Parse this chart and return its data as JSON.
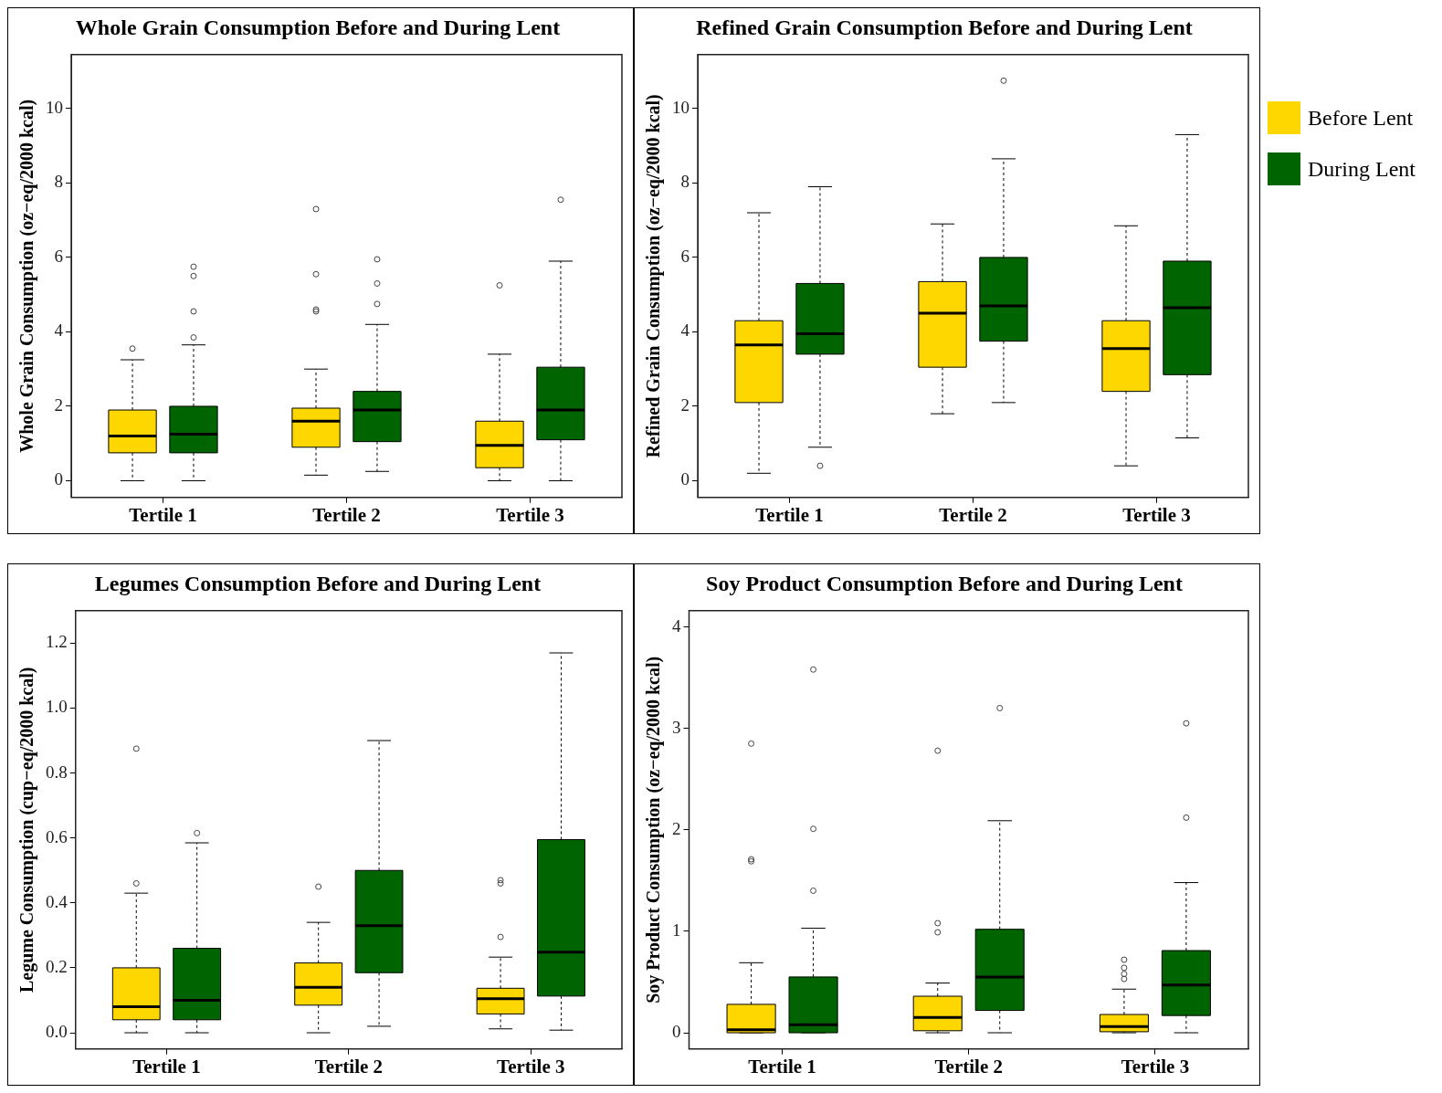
{
  "chart_data": [
    {
      "type": "box",
      "title": "Whole Grain Consumption Before and During Lent",
      "ylabel": "Whole Grain Consumption (oz−eq/2000 kcal)",
      "categories": [
        "Tertile 1",
        "Tertile 2",
        "Tertile 3"
      ],
      "ylim": [
        -0.45,
        11.45
      ],
      "yticks": [
        0,
        2,
        4,
        6,
        8,
        10
      ],
      "grid": false,
      "series": [
        {
          "color": "#ffd700",
          "boxes": [
            {
              "low": 0,
              "q1": 0.75,
              "median": 1.2,
              "q3": 1.9,
              "high": 3.25,
              "outliers": [
                3.55
              ]
            },
            {
              "low": 0.15,
              "q1": 0.9,
              "median": 1.6,
              "q3": 1.95,
              "high": 3.0,
              "outliers": [
                4.55,
                4.6,
                5.55,
                7.3
              ]
            },
            {
              "low": 0,
              "q1": 0.35,
              "median": 0.95,
              "q3": 1.6,
              "high": 3.4,
              "outliers": [
                5.25
              ]
            }
          ]
        },
        {
          "color": "#006400",
          "boxes": [
            {
              "low": 0,
              "q1": 0.75,
              "median": 1.25,
              "q3": 2.0,
              "high": 3.65,
              "outliers": [
                3.85,
                4.55,
                5.5,
                5.75
              ]
            },
            {
              "low": 0.25,
              "q1": 1.05,
              "median": 1.9,
              "q3": 2.4,
              "high": 4.2,
              "outliers": [
                4.75,
                5.3,
                5.95
              ]
            },
            {
              "low": 0,
              "q1": 1.1,
              "median": 1.9,
              "q3": 3.05,
              "high": 5.9,
              "outliers": [
                7.55
              ]
            }
          ]
        }
      ]
    },
    {
      "type": "box",
      "title": "Refined Grain Consumption Before and During Lent",
      "ylabel": "Refined Grain Consumption (oz−eq/2000 kcal)",
      "categories": [
        "Tertile 1",
        "Tertile 2",
        "Tertile 3"
      ],
      "ylim": [
        -0.45,
        11.45
      ],
      "yticks": [
        0,
        2,
        4,
        6,
        8,
        10
      ],
      "grid": false,
      "legend": "right",
      "series": [
        {
          "name": "Before Lent",
          "color": "#ffd700",
          "boxes": [
            {
              "low": 0.2,
              "q1": 2.1,
              "median": 3.65,
              "q3": 4.3,
              "high": 7.2
            },
            {
              "low": 1.8,
              "q1": 3.05,
              "median": 4.5,
              "q3": 5.35,
              "high": 6.9
            },
            {
              "low": 0.4,
              "q1": 2.4,
              "median": 3.55,
              "q3": 4.3,
              "high": 6.85
            }
          ]
        },
        {
          "name": "During Lent",
          "color": "#006400",
          "boxes": [
            {
              "low": 0.9,
              "q1": 3.4,
              "median": 3.95,
              "q3": 5.3,
              "high": 7.9,
              "outliers": [
                0.4
              ]
            },
            {
              "low": 2.1,
              "q1": 3.75,
              "median": 4.7,
              "q3": 6.0,
              "high": 8.65,
              "outliers": [
                10.75
              ]
            },
            {
              "low": 1.15,
              "q1": 2.85,
              "median": 4.65,
              "q3": 5.9,
              "high": 9.3
            }
          ]
        }
      ]
    },
    {
      "type": "box",
      "title": "Legumes Consumption Before and During Lent",
      "ylabel": "Legume Consumption (cup−eq/2000 kcal)",
      "categories": [
        "Tertile 1",
        "Tertile 2",
        "Tertile 3"
      ],
      "ylim": [
        -0.05,
        1.3
      ],
      "yticks": [
        {
          "value": 0,
          "label": "0.0"
        },
        0.2,
        0.4,
        0.6,
        0.8,
        {
          "value": 1,
          "label": "1.0"
        },
        1.2
      ],
      "grid": false,
      "series": [
        {
          "color": "#ffd700",
          "boxes": [
            {
              "low": 0,
              "q1": 0.04,
              "median": 0.08,
              "q3": 0.2,
              "high": 0.43,
              "outliers": [
                0.46,
                0.875
              ]
            },
            {
              "low": 0,
              "q1": 0.085,
              "median": 0.14,
              "q3": 0.215,
              "high": 0.34,
              "outliers": [
                0.45
              ]
            },
            {
              "low": 0.012,
              "q1": 0.058,
              "median": 0.105,
              "q3": 0.137,
              "high": 0.233,
              "outliers": [
                0.295,
                0.46,
                0.47
              ]
            }
          ]
        },
        {
          "color": "#006400",
          "boxes": [
            {
              "low": 0,
              "q1": 0.04,
              "median": 0.1,
              "q3": 0.26,
              "high": 0.585,
              "outliers": [
                0.615
              ]
            },
            {
              "low": 0.02,
              "q1": 0.185,
              "median": 0.33,
              "q3": 0.5,
              "high": 0.9
            },
            {
              "low": 0.008,
              "q1": 0.113,
              "median": 0.248,
              "q3": 0.595,
              "high": 1.17
            }
          ]
        }
      ]
    },
    {
      "type": "box",
      "title": "Soy Product Consumption Before and During Lent",
      "ylabel": "Soy Product Consumption (oz−eq/2000 kcal)",
      "categories": [
        "Tertile 1",
        "Tertile 2",
        "Tertile 3"
      ],
      "ylim": [
        -0.16,
        4.16
      ],
      "yticks": [
        0,
        1,
        2,
        3,
        4
      ],
      "grid": false,
      "series": [
        {
          "color": "#ffd700",
          "boxes": [
            {
              "low": 0,
              "q1": 0,
              "median": 0.03,
              "q3": 0.28,
              "high": 0.69,
              "outliers": [
                1.69,
                1.71,
                2.85
              ]
            },
            {
              "low": 0,
              "q1": 0.02,
              "median": 0.15,
              "q3": 0.36,
              "high": 0.49,
              "outliers": [
                0.99,
                1.08,
                2.78
              ]
            },
            {
              "low": 0,
              "q1": 0.01,
              "median": 0.06,
              "q3": 0.18,
              "high": 0.43,
              "outliers": [
                0.53,
                0.58,
                0.64,
                0.72
              ]
            }
          ]
        },
        {
          "color": "#006400",
          "boxes": [
            {
              "low": 0,
              "q1": 0,
              "median": 0.08,
              "q3": 0.55,
              "high": 1.03,
              "outliers": [
                1.4,
                2.01,
                3.58
              ]
            },
            {
              "low": 0,
              "q1": 0.22,
              "median": 0.55,
              "q3": 1.02,
              "high": 2.09,
              "outliers": [
                3.2
              ]
            },
            {
              "low": 0,
              "q1": 0.17,
              "median": 0.47,
              "q3": 0.81,
              "high": 1.48,
              "outliers": [
                2.12,
                3.05
              ]
            }
          ]
        }
      ]
    }
  ]
}
